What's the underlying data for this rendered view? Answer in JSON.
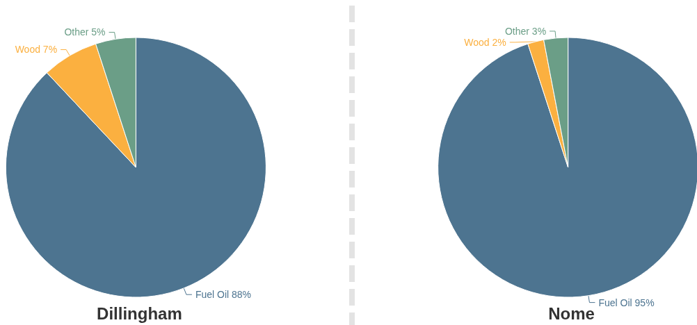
{
  "chart_data": [
    {
      "type": "pie",
      "title": "Dillingham",
      "categories": [
        "Fuel Oil",
        "Wood",
        "Other"
      ],
      "values": [
        88,
        7,
        5
      ],
      "value_labels": [
        "88%",
        "7%",
        "5%"
      ],
      "colors": [
        "#4d7490",
        "#fbb040",
        "#6b9e87"
      ],
      "legend": false
    },
    {
      "type": "pie",
      "title": "Nome",
      "categories": [
        "Fuel Oil",
        "Wood",
        "Other"
      ],
      "values": [
        95,
        2,
        3
      ],
      "value_labels": [
        "95%",
        "2%",
        "3%"
      ],
      "colors": [
        "#4d7490",
        "#fbb040",
        "#6b9e87"
      ],
      "legend": false
    }
  ]
}
